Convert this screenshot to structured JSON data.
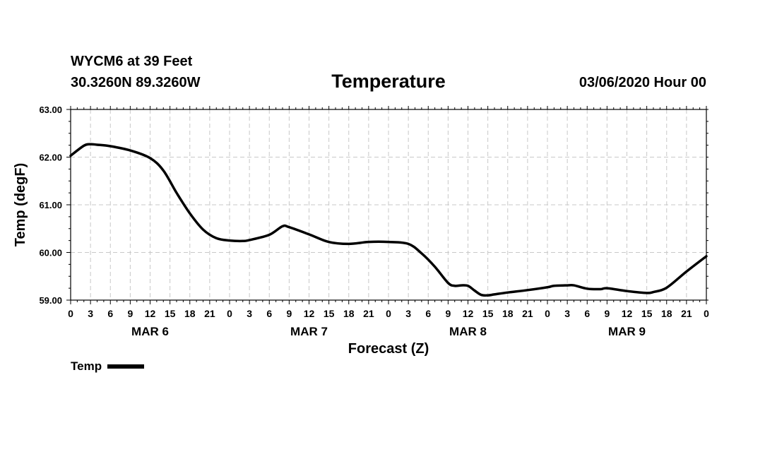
{
  "header": {
    "station": "WYCM6 at 39 Feet",
    "coords": "30.3260N 89.3260W",
    "title": "Temperature",
    "run": "03/06/2020 Hour 00"
  },
  "chart_data": {
    "type": "line",
    "title": "Temperature",
    "xlabel": "Forecast (Z)",
    "ylabel": "Temp (degF)",
    "xlim": [
      0,
      96
    ],
    "ylim": [
      59.0,
      63.0
    ],
    "yticks": [
      "59.00",
      "60.00",
      "61.00",
      "62.00",
      "63.00"
    ],
    "xticks": [
      "0",
      "3",
      "6",
      "9",
      "12",
      "15",
      "18",
      "21",
      "0",
      "3",
      "6",
      "9",
      "12",
      "15",
      "18",
      "21",
      "0",
      "3",
      "6",
      "9",
      "12",
      "15",
      "18",
      "21",
      "0",
      "3",
      "6",
      "9",
      "12",
      "15",
      "18",
      "21",
      "0"
    ],
    "day_labels": [
      "MAR 6",
      "MAR 7",
      "MAR 8",
      "MAR 9"
    ],
    "grid": true,
    "legend_position": "bottom-left",
    "series": [
      {
        "name": "Temp",
        "color": "#000000",
        "x": [
          0,
          2,
          3,
          4,
          6,
          9,
          12,
          14,
          16,
          18,
          20,
          22,
          24,
          26,
          27,
          30,
          32,
          33,
          36,
          39,
          42,
          45,
          48,
          51,
          53,
          55,
          57,
          58,
          59,
          60,
          61,
          62,
          63,
          64,
          66,
          69,
          72,
          73,
          75,
          76,
          78,
          80,
          81,
          84,
          87,
          88,
          90,
          93,
          96
        ],
        "y": [
          62.03,
          62.24,
          62.27,
          62.26,
          62.23,
          62.14,
          61.98,
          61.72,
          61.25,
          60.82,
          60.48,
          60.3,
          60.25,
          60.24,
          60.26,
          60.37,
          60.55,
          60.53,
          60.38,
          60.22,
          60.18,
          60.22,
          60.22,
          60.18,
          59.98,
          59.7,
          59.36,
          59.3,
          59.31,
          59.3,
          59.2,
          59.11,
          59.1,
          59.12,
          59.16,
          59.21,
          59.27,
          59.3,
          59.31,
          59.31,
          59.24,
          59.23,
          59.25,
          59.19,
          59.15,
          59.17,
          59.26,
          59.6,
          59.92
        ]
      }
    ]
  }
}
